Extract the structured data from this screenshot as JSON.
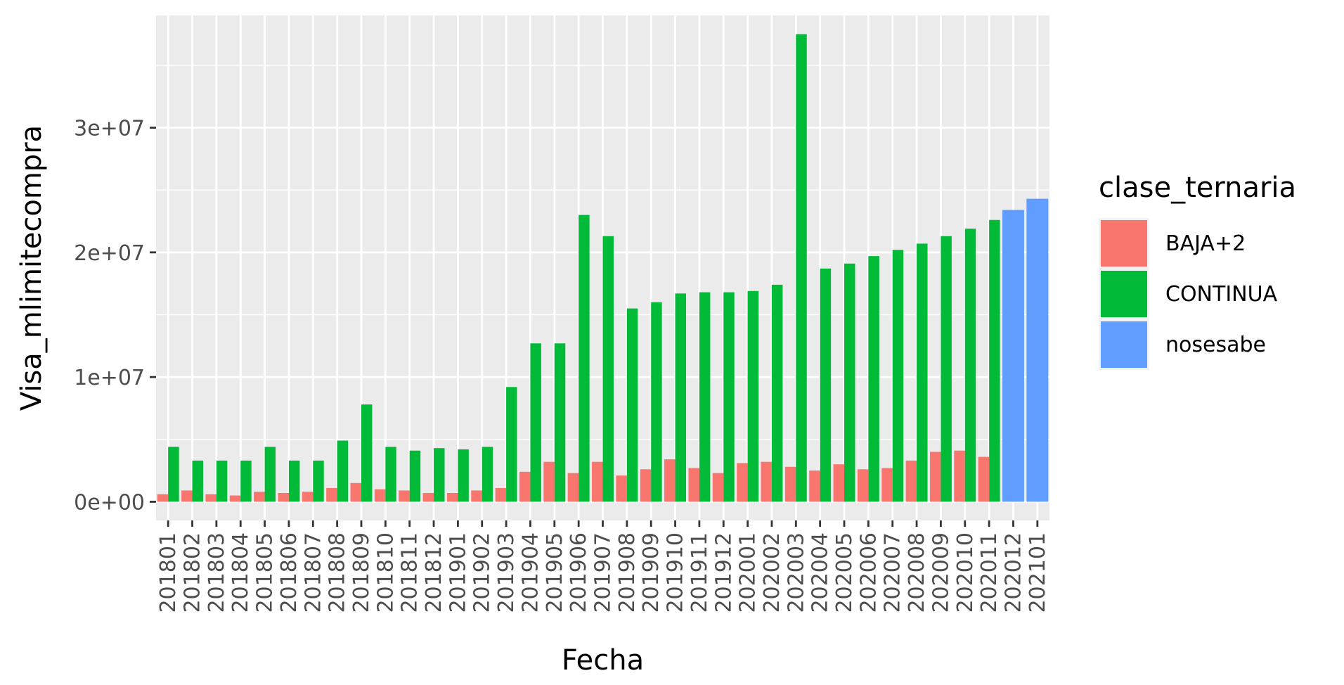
{
  "chart_data": {
    "type": "bar",
    "title": "",
    "xlabel": "Fecha",
    "ylabel": "Visa_mlimitecompra",
    "ylim": [
      -1500000,
      39000000
    ],
    "yticks": [
      0,
      10000000,
      20000000,
      30000000
    ],
    "ytick_labels": [
      "0e+00",
      "1e+07",
      "2e+07",
      "3e+07"
    ],
    "grid": true,
    "legend_position": "right",
    "legend_title": "clase_ternaria",
    "categories": [
      "201801",
      "201802",
      "201803",
      "201804",
      "201805",
      "201806",
      "201807",
      "201808",
      "201809",
      "201810",
      "201811",
      "201812",
      "201901",
      "201902",
      "201903",
      "201904",
      "201905",
      "201906",
      "201907",
      "201908",
      "201909",
      "201910",
      "201911",
      "201912",
      "202001",
      "202002",
      "202003",
      "202004",
      "202005",
      "202006",
      "202007",
      "202008",
      "202009",
      "202010",
      "202011",
      "202012",
      "202101"
    ],
    "series": [
      {
        "name": "BAJA+2",
        "color": "#F8766D",
        "values": [
          600000,
          900000,
          600000,
          500000,
          800000,
          700000,
          800000,
          1100000,
          1500000,
          1000000,
          900000,
          700000,
          700000,
          900000,
          1100000,
          2400000,
          3200000,
          2300000,
          3200000,
          2100000,
          2600000,
          3400000,
          2700000,
          2300000,
          3100000,
          3200000,
          2800000,
          2500000,
          3000000,
          2600000,
          2700000,
          3300000,
          4000000,
          4100000,
          3600000,
          null,
          null
        ]
      },
      {
        "name": "CONTINUA",
        "color": "#00BA38",
        "values": [
          4400000,
          3300000,
          3300000,
          3300000,
          4400000,
          3300000,
          3300000,
          4900000,
          7800000,
          4400000,
          4100000,
          4300000,
          4200000,
          4400000,
          9200000,
          12700000,
          12700000,
          23000000,
          21300000,
          15500000,
          16000000,
          16700000,
          16800000,
          16800000,
          16900000,
          17400000,
          37500000,
          18700000,
          19100000,
          19700000,
          20200000,
          20700000,
          21300000,
          21900000,
          22600000,
          null,
          null
        ]
      },
      {
        "name": "nosesabe",
        "color": "#619CFF",
        "values": [
          null,
          null,
          null,
          null,
          null,
          null,
          null,
          null,
          null,
          null,
          null,
          null,
          null,
          null,
          null,
          null,
          null,
          null,
          null,
          null,
          null,
          null,
          null,
          null,
          null,
          null,
          null,
          null,
          null,
          null,
          null,
          null,
          null,
          null,
          null,
          23400000,
          24300000
        ]
      }
    ]
  }
}
